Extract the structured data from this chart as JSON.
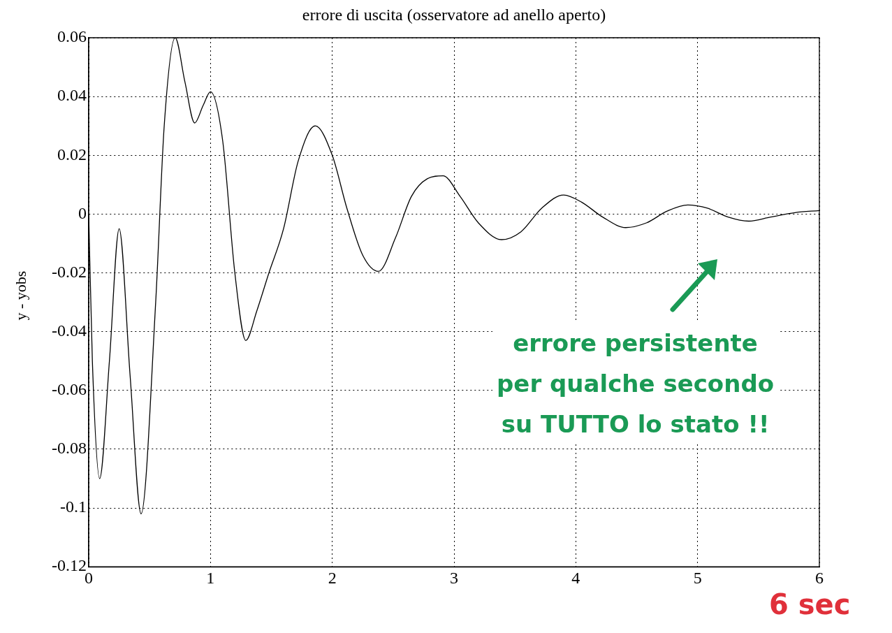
{
  "chart_data": {
    "type": "line",
    "title": "errore di uscita (osservatore ad anello aperto)",
    "ylabel": "y - yobs",
    "x": [
      0,
      0.03,
      0.09,
      0.17,
      0.25,
      0.34,
      0.43,
      0.55,
      0.62,
      0.71,
      0.79,
      0.87,
      0.94,
      1.0,
      1.1,
      1.2,
      1.29,
      1.38,
      1.48,
      1.6,
      1.72,
      1.86,
      2.0,
      2.12,
      2.25,
      2.38,
      2.52,
      2.65,
      2.78,
      2.91,
      3.05,
      3.2,
      3.39,
      3.55,
      3.72,
      3.9,
      4.05,
      4.22,
      4.41,
      4.58,
      4.75,
      4.92,
      5.08,
      5.25,
      5.42,
      5.6,
      5.8,
      6.0
    ],
    "series": [
      {
        "color": "#000000",
        "values": [
          0,
          -0.05,
          -0.09,
          -0.05,
          -0.005,
          -0.055,
          -0.102,
          -0.03,
          0.03,
          0.06,
          0.045,
          0.031,
          0.037,
          0.0416,
          0.025,
          -0.02,
          -0.043,
          -0.033,
          -0.02,
          -0.005,
          0.018,
          0.03,
          0.02,
          0.002,
          -0.014,
          -0.0195,
          -0.008,
          0.006,
          0.012,
          0.013,
          0.006,
          -0.003,
          -0.0087,
          -0.006,
          0.002,
          0.0065,
          0.004,
          -0.001,
          -0.0046,
          -0.003,
          0.001,
          0.0031,
          0.002,
          -0.001,
          -0.0024,
          -0.001,
          0.0005,
          0.0012
        ]
      }
    ],
    "xlim": [
      0,
      6
    ],
    "xticks": [
      0,
      1,
      2,
      3,
      4,
      5,
      6
    ],
    "ylim": [
      -0.12,
      0.06
    ],
    "yticks": [
      -0.12,
      -0.1,
      -0.08,
      -0.06,
      -0.04,
      -0.02,
      0,
      0.02,
      0.04,
      0.06
    ],
    "grid": true,
    "legend": false,
    "marker": "none",
    "line_style": "solid",
    "annotations": [
      "errore persistente\nper qualche secondo\nsu TUTTO lo stato !!",
      "6 sec"
    ]
  }
}
